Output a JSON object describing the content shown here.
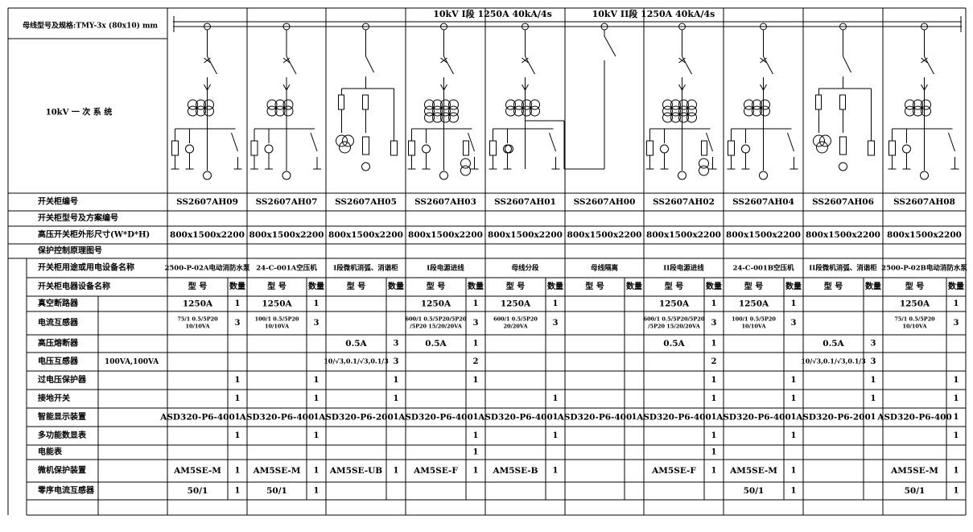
{
  "header": {
    "bus_spec": "母线型号及规格:TMY-3x (80x10) mm",
    "system_label": "10kV 一 次 系 统",
    "bus1": "10kV I段 1250A 40kA/4s",
    "bus2": "10kV II段 1250A 40kA/4s"
  },
  "table": {
    "info_rows": [
      {
        "label": "开关柜编号",
        "values": [
          "SS2607AH09",
          "SS2607AH07",
          "SS2607AH05",
          "SS2607AH03",
          "SS2607AH01",
          "SS2607AH00",
          "SS2607AH02",
          "SS2607AH04",
          "SS2607AH06",
          "SS2607AH08"
        ]
      },
      {
        "label": "开关柜型号及方案编号",
        "values": [
          null,
          null,
          null,
          null,
          null,
          null,
          null,
          null,
          null,
          null
        ]
      },
      {
        "label": "高压开关柜外形尺寸(W*D*H)",
        "values": [
          "800x1500x2200",
          "800x1500x2200",
          "800x1500x2200",
          "800x1500x2200",
          "800x1500x2200",
          "800x1500x2200",
          "800x1500x2200",
          "800x1500x2200",
          "800x1500x2200",
          "800x1500x2200"
        ]
      },
      {
        "label": "保护控制原理图号",
        "values": [
          null,
          null,
          null,
          null,
          null,
          null,
          null,
          null,
          null,
          null
        ]
      },
      {
        "label": "开关柜用途或用电设备名称",
        "values": [
          "2500-P-02A电动消防水泵",
          "24-C-001A空压机",
          "I段微机消弧、消谐柜",
          "I段电源进线",
          "母线分段",
          "母线隔离",
          "II段电源进线",
          "24-C-001B空压机",
          "II段微机消弧、消谐柜",
          "2500-P-02B电动消防水泵"
        ]
      }
    ],
    "device_header": {
      "label": "开关柜电器设备名称",
      "model": "型 号",
      "qty": "数量"
    },
    "device_rows": [
      {
        "label": "真空断路器",
        "cells": [
          [
            "1250A",
            1
          ],
          [
            "1250A",
            1
          ],
          [
            null,
            null
          ],
          [
            "1250A",
            1
          ],
          [
            "1250A",
            1
          ],
          [
            null,
            null
          ],
          [
            "1250A",
            1
          ],
          [
            "1250A",
            1
          ],
          [
            null,
            null
          ],
          [
            "1250A",
            1
          ]
        ]
      },
      {
        "label": "电流互感器",
        "cells": [
          [
            [
              "75/1  0.5/5P20",
              "10/10VA"
            ],
            3
          ],
          [
            [
              "100/1  0.5/5P20",
              "10/10VA"
            ],
            3
          ],
          [
            null,
            null
          ],
          [
            [
              "600/1 0.5/5P20/5P20",
              "/5P20 15/20/20VA"
            ],
            3
          ],
          [
            [
              "600/1  0.5/5P20",
              "20/20VA"
            ],
            3
          ],
          [
            null,
            null
          ],
          [
            [
              "600/1 0.5/5P20/5P20",
              "/5P20 15/20/20VA"
            ],
            3
          ],
          [
            [
              "100/1  0.5/5P20",
              "10/10VA"
            ],
            3
          ],
          [
            null,
            null
          ],
          [
            [
              "75/1  0.5/5P20",
              "10/10VA"
            ],
            3
          ]
        ]
      },
      {
        "label": "高压熔断器",
        "cells": [
          [
            null,
            null
          ],
          [
            null,
            null
          ],
          [
            "0.5A",
            3
          ],
          [
            "0.5A",
            1
          ],
          [
            null,
            null
          ],
          [
            null,
            null
          ],
          [
            "0.5A",
            1
          ],
          [
            null,
            null
          ],
          [
            "0.5A",
            3
          ],
          [
            null,
            null
          ]
        ]
      },
      {
        "label": "电压互感器",
        "note": "100VA,100VA",
        "cells": [
          [
            null,
            null
          ],
          [
            null,
            null
          ],
          [
            "10/√3,0.1/√3,0.1/3",
            3
          ],
          [
            null,
            2
          ],
          [
            null,
            null
          ],
          [
            null,
            null
          ],
          [
            null,
            2
          ],
          [
            null,
            null
          ],
          [
            "10/√3,0.1/√3,0.1/3",
            3
          ],
          [
            null,
            null
          ]
        ]
      },
      {
        "label": "过电压保护器",
        "cells": [
          [
            null,
            1
          ],
          [
            null,
            1
          ],
          [
            null,
            1
          ],
          [
            null,
            1
          ],
          [
            null,
            null
          ],
          [
            null,
            null
          ],
          [
            null,
            1
          ],
          [
            null,
            1
          ],
          [
            null,
            1
          ],
          [
            null,
            1
          ]
        ]
      },
      {
        "label": "接地开关",
        "cells": [
          [
            null,
            1
          ],
          [
            null,
            1
          ],
          [
            null,
            1
          ],
          [
            null,
            null
          ],
          [
            null,
            1
          ],
          [
            null,
            null
          ],
          [
            null,
            1
          ],
          [
            null,
            1
          ],
          [
            null,
            1
          ],
          [
            null,
            1
          ]
        ]
      },
      {
        "label": "智能显示装置",
        "cells": [
          [
            "ASD320-P6-400",
            1
          ],
          [
            "ASD320-P6-400",
            1
          ],
          [
            "ASD320-P6-200",
            1
          ],
          [
            "ASD320-P6-400",
            1
          ],
          [
            "ASD320-P6-400",
            1
          ],
          [
            "ASD320-P6-400",
            1
          ],
          [
            "ASD320-P6-400",
            1
          ],
          [
            "ASD320-P6-400",
            1
          ],
          [
            "ASD320-P6-200",
            1
          ],
          [
            "ASD320-P6-400",
            1
          ]
        ]
      },
      {
        "label": "多功能数显表",
        "cells": [
          [
            null,
            1
          ],
          [
            null,
            1
          ],
          [
            null,
            null
          ],
          [
            null,
            1
          ],
          [
            null,
            1
          ],
          [
            null,
            null
          ],
          [
            null,
            1
          ],
          [
            null,
            1
          ],
          [
            null,
            null
          ],
          [
            null,
            1
          ]
        ]
      },
      {
        "label": "电能表",
        "cells": [
          [
            null,
            null
          ],
          [
            null,
            null
          ],
          [
            null,
            null
          ],
          [
            null,
            1
          ],
          [
            null,
            null
          ],
          [
            null,
            null
          ],
          [
            null,
            1
          ],
          [
            null,
            null
          ],
          [
            null,
            null
          ],
          [
            null,
            null
          ]
        ]
      },
      {
        "label": "微机保护装置",
        "cells": [
          [
            "AM5SE-M",
            1
          ],
          [
            "AM5SE-M",
            1
          ],
          [
            "AM5SE-UB",
            1
          ],
          [
            "AM5SE-F",
            1
          ],
          [
            "AM5SE-B",
            1
          ],
          [
            null,
            null
          ],
          [
            "AM5SE-F",
            1
          ],
          [
            "AM5SE-M",
            1
          ],
          [
            null,
            null
          ],
          [
            "AM5SE-M",
            1
          ]
        ]
      },
      {
        "label": "零序电流互感器",
        "cells": [
          [
            "50/1",
            1
          ],
          [
            "50/1",
            1
          ],
          [
            null,
            null
          ],
          [
            null,
            null
          ],
          [
            null,
            null
          ],
          [
            null,
            null
          ],
          [
            null,
            null
          ],
          [
            "50/1",
            1
          ],
          [
            null,
            null
          ],
          [
            "50/1",
            1
          ]
        ]
      }
    ]
  }
}
